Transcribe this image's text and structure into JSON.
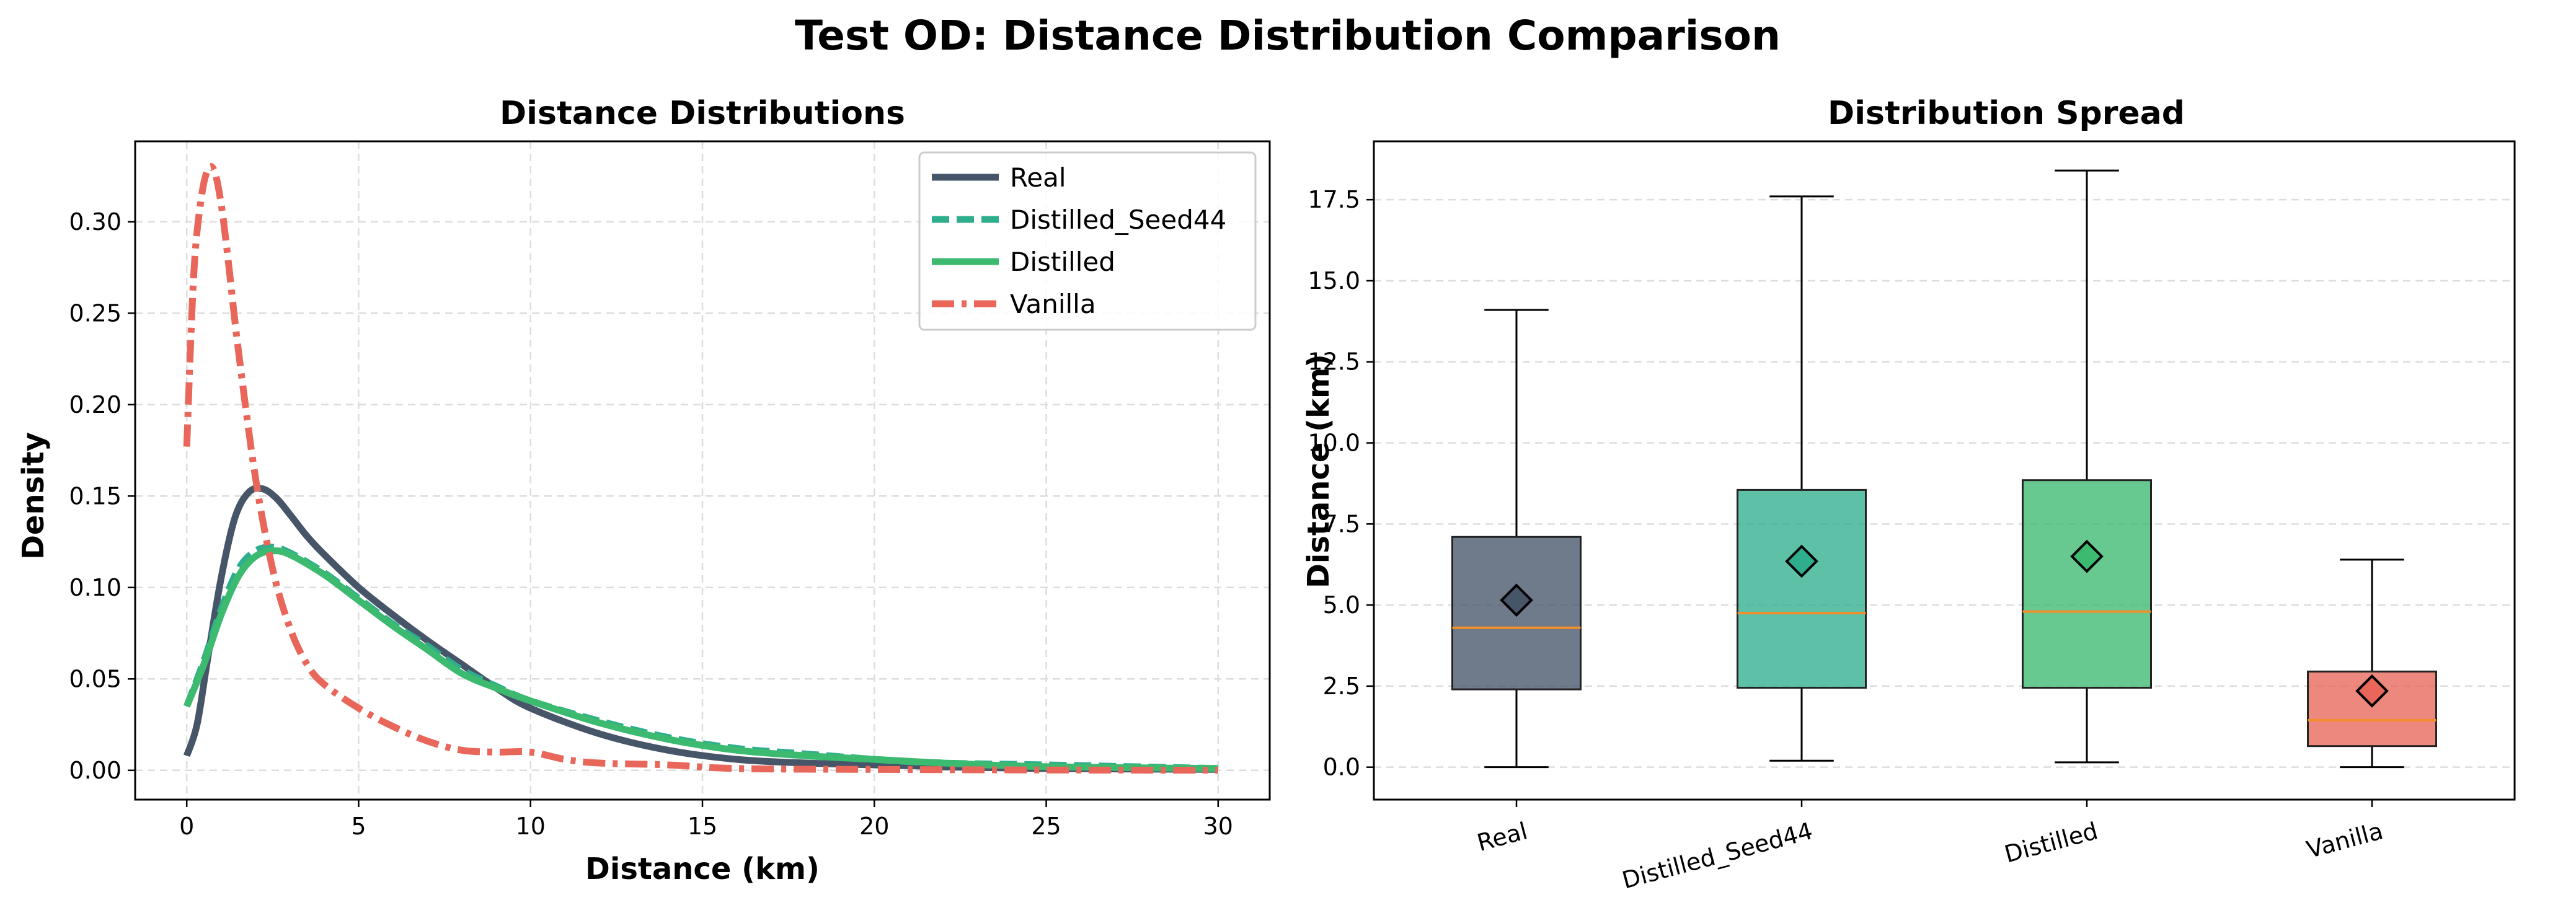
{
  "suptitle": "Test OD: Distance Distribution Comparison",
  "chart_data": [
    {
      "type": "line",
      "title": "Distance Distributions",
      "xlabel": "Distance (km)",
      "ylabel": "Density",
      "xlim": [
        -1.5,
        31.5
      ],
      "ylim": [
        -0.016,
        0.344
      ],
      "xticks": [
        0,
        5,
        10,
        15,
        20,
        25,
        30
      ],
      "yticks": [
        0.0,
        0.05,
        0.1,
        0.15,
        0.2,
        0.25,
        0.3
      ],
      "ytick_labels": [
        "0.00",
        "0.05",
        "0.10",
        "0.15",
        "0.20",
        "0.25",
        "0.30"
      ],
      "grid": true,
      "legend_position": "top-right",
      "series": [
        {
          "name": "Real",
          "color": "#475569",
          "style": "solid",
          "x": [
            0,
            0.3,
            0.6,
            1.0,
            1.4,
            1.8,
            2.2,
            2.6,
            3.0,
            3.5,
            4.0,
            5.0,
            6.0,
            7.0,
            8.0,
            9.0,
            10.0,
            12.0,
            14.0,
            16.0,
            18.0,
            20.0,
            22.0,
            25.0,
            30.0
          ],
          "y": [
            0.008,
            0.025,
            0.06,
            0.105,
            0.138,
            0.152,
            0.154,
            0.149,
            0.14,
            0.128,
            0.118,
            0.1,
            0.085,
            0.071,
            0.058,
            0.045,
            0.034,
            0.02,
            0.011,
            0.006,
            0.004,
            0.003,
            0.002,
            0.001,
            0.0005
          ]
        },
        {
          "name": "Distilled_Seed44",
          "color": "#2fae8e",
          "style": "dashed",
          "x": [
            0,
            0.5,
            1.0,
            1.5,
            2.0,
            2.5,
            3.0,
            4.0,
            5.0,
            6.0,
            7.0,
            8.0,
            9.0,
            10.0,
            12.0,
            14.0,
            16.0,
            18.0,
            20.0,
            22.0,
            25.0,
            30.0
          ],
          "y": [
            0.035,
            0.06,
            0.088,
            0.11,
            0.12,
            0.122,
            0.119,
            0.108,
            0.094,
            0.08,
            0.068,
            0.055,
            0.046,
            0.038,
            0.027,
            0.018,
            0.012,
            0.009,
            0.006,
            0.004,
            0.003,
            0.001
          ]
        },
        {
          "name": "Distilled",
          "color": "#3cba6f",
          "style": "solid",
          "x": [
            0,
            0.5,
            1.0,
            1.5,
            2.0,
            2.5,
            3.0,
            4.0,
            5.0,
            6.0,
            7.0,
            8.0,
            9.0,
            10.0,
            12.0,
            14.0,
            16.0,
            18.0,
            20.0,
            22.0,
            25.0,
            30.0
          ],
          "y": [
            0.035,
            0.058,
            0.085,
            0.106,
            0.117,
            0.12,
            0.118,
            0.107,
            0.093,
            0.079,
            0.066,
            0.053,
            0.045,
            0.038,
            0.026,
            0.017,
            0.011,
            0.008,
            0.006,
            0.004,
            0.002,
            0.001
          ]
        },
        {
          "name": "Vanilla",
          "color": "#e8665a",
          "style": "dashdot",
          "x": [
            0,
            0.2,
            0.4,
            0.6,
            0.8,
            1.0,
            1.2,
            1.5,
            2.0,
            2.5,
            3.0,
            3.5,
            4.0,
            5.0,
            6.0,
            7.0,
            8.0,
            9.0,
            10.0,
            11.0,
            12.0,
            14.0,
            16.0,
            20.0,
            25.0,
            30.0
          ],
          "y": [
            0.177,
            0.27,
            0.31,
            0.328,
            0.328,
            0.31,
            0.28,
            0.23,
            0.16,
            0.11,
            0.078,
            0.058,
            0.047,
            0.034,
            0.024,
            0.016,
            0.011,
            0.01,
            0.01,
            0.006,
            0.004,
            0.003,
            0.001,
            0.0005,
            0.0002,
            0.0001
          ]
        }
      ]
    },
    {
      "type": "box",
      "title": "Distribution Spread",
      "xlabel": "",
      "ylabel": "Distance (km)",
      "ylim": [
        -1.0,
        19.3
      ],
      "yticks": [
        0.0,
        2.5,
        5.0,
        7.5,
        10.0,
        12.5,
        15.0,
        17.5
      ],
      "ytick_labels": [
        "0.0",
        "2.5",
        "5.0",
        "7.5",
        "10.0",
        "12.5",
        "15.0",
        "17.5"
      ],
      "grid": true,
      "categories": [
        "Real",
        "Distilled_Seed44",
        "Distilled",
        "Vanilla"
      ],
      "colors": [
        "#475569",
        "#2fae8e",
        "#3cba6f",
        "#e8665a"
      ],
      "boxes": [
        {
          "whislo": 0.0,
          "q1": 2.4,
          "med": 4.3,
          "q3": 7.1,
          "whishi": 14.1,
          "mean": 5.15
        },
        {
          "whislo": 0.2,
          "q1": 2.45,
          "med": 4.75,
          "q3": 8.55,
          "whishi": 17.6,
          "mean": 6.35
        },
        {
          "whislo": 0.15,
          "q1": 2.45,
          "med": 4.8,
          "q3": 8.85,
          "whishi": 18.4,
          "mean": 6.5
        },
        {
          "whislo": 0.0,
          "q1": 0.65,
          "med": 1.45,
          "q3": 2.95,
          "whishi": 6.4,
          "mean": 2.35
        }
      ]
    }
  ]
}
